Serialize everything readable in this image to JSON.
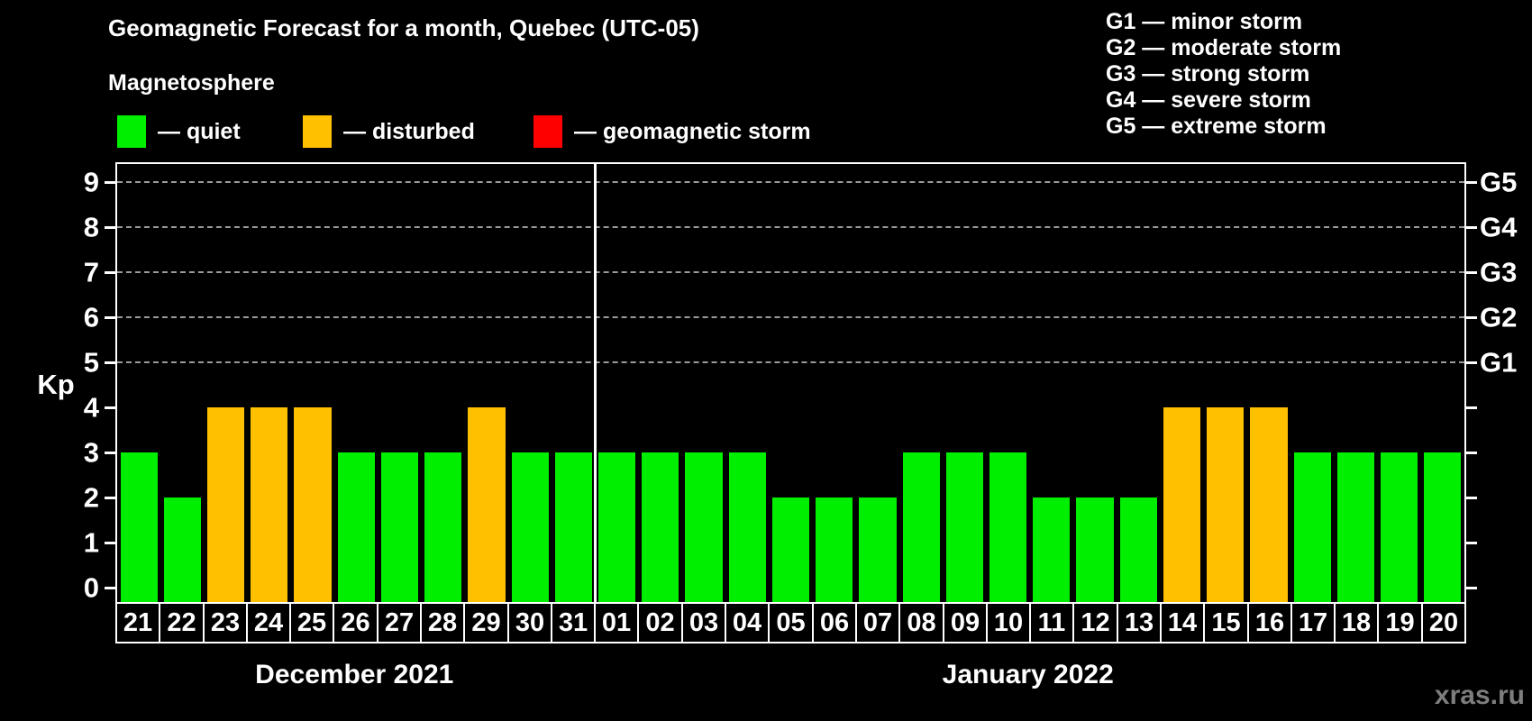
{
  "header": {
    "title": "Geomagnetic Forecast for a month, Quebec (UTC-05)",
    "subtitle": "Magnetosphere",
    "legend": [
      {
        "key": "quiet",
        "label": "— quiet",
        "color": "#00ee00"
      },
      {
        "key": "disturbed",
        "label": "— disturbed",
        "color": "#ffc000"
      },
      {
        "key": "storm",
        "label": "— geomagnetic storm",
        "color": "#ff0000"
      }
    ],
    "g_scale": [
      "G1 — minor storm",
      "G2 — moderate storm",
      "G3 — strong storm",
      "G4 — severe storm",
      "G5 — extreme storm"
    ]
  },
  "watermark": "xras.ru",
  "chart_data": {
    "type": "bar",
    "title": "Geomagnetic Forecast for a month, Quebec (UTC-05)",
    "ylabel": "Kp",
    "ylim": [
      0,
      9.4
    ],
    "yticks": [
      0,
      1,
      2,
      3,
      4,
      5,
      6,
      7,
      8,
      9
    ],
    "grid_on": true,
    "gridlines_at_kp": [
      5,
      6,
      7,
      8,
      9
    ],
    "right_axis": [
      {
        "kp": 5,
        "label": "G1"
      },
      {
        "kp": 6,
        "label": "G2"
      },
      {
        "kp": 7,
        "label": "G3"
      },
      {
        "kp": 8,
        "label": "G4"
      },
      {
        "kp": 9,
        "label": "G5"
      }
    ],
    "colors": {
      "quiet": "#00ee00",
      "disturbed": "#ffc000",
      "storm": "#ff0000"
    },
    "groups": [
      {
        "label": "December 2021",
        "days": [
          "21",
          "22",
          "23",
          "24",
          "25",
          "26",
          "27",
          "28",
          "29",
          "30",
          "31"
        ],
        "values": [
          3,
          2,
          4,
          4,
          4,
          3,
          3,
          3,
          4,
          3,
          3
        ],
        "states": [
          "quiet",
          "quiet",
          "disturbed",
          "disturbed",
          "disturbed",
          "quiet",
          "quiet",
          "quiet",
          "disturbed",
          "quiet",
          "quiet"
        ]
      },
      {
        "label": "January 2022",
        "days": [
          "01",
          "02",
          "03",
          "04",
          "05",
          "06",
          "07",
          "08",
          "09",
          "10",
          "11",
          "12",
          "13",
          "14",
          "15",
          "16",
          "17",
          "18",
          "19",
          "20"
        ],
        "values": [
          3,
          3,
          3,
          3,
          2,
          2,
          2,
          3,
          3,
          3,
          2,
          2,
          2,
          4,
          4,
          4,
          3,
          3,
          3,
          3
        ],
        "states": [
          "quiet",
          "quiet",
          "quiet",
          "quiet",
          "quiet",
          "quiet",
          "quiet",
          "quiet",
          "quiet",
          "quiet",
          "quiet",
          "quiet",
          "quiet",
          "disturbed",
          "disturbed",
          "disturbed",
          "quiet",
          "quiet",
          "quiet",
          "quiet"
        ]
      }
    ]
  }
}
